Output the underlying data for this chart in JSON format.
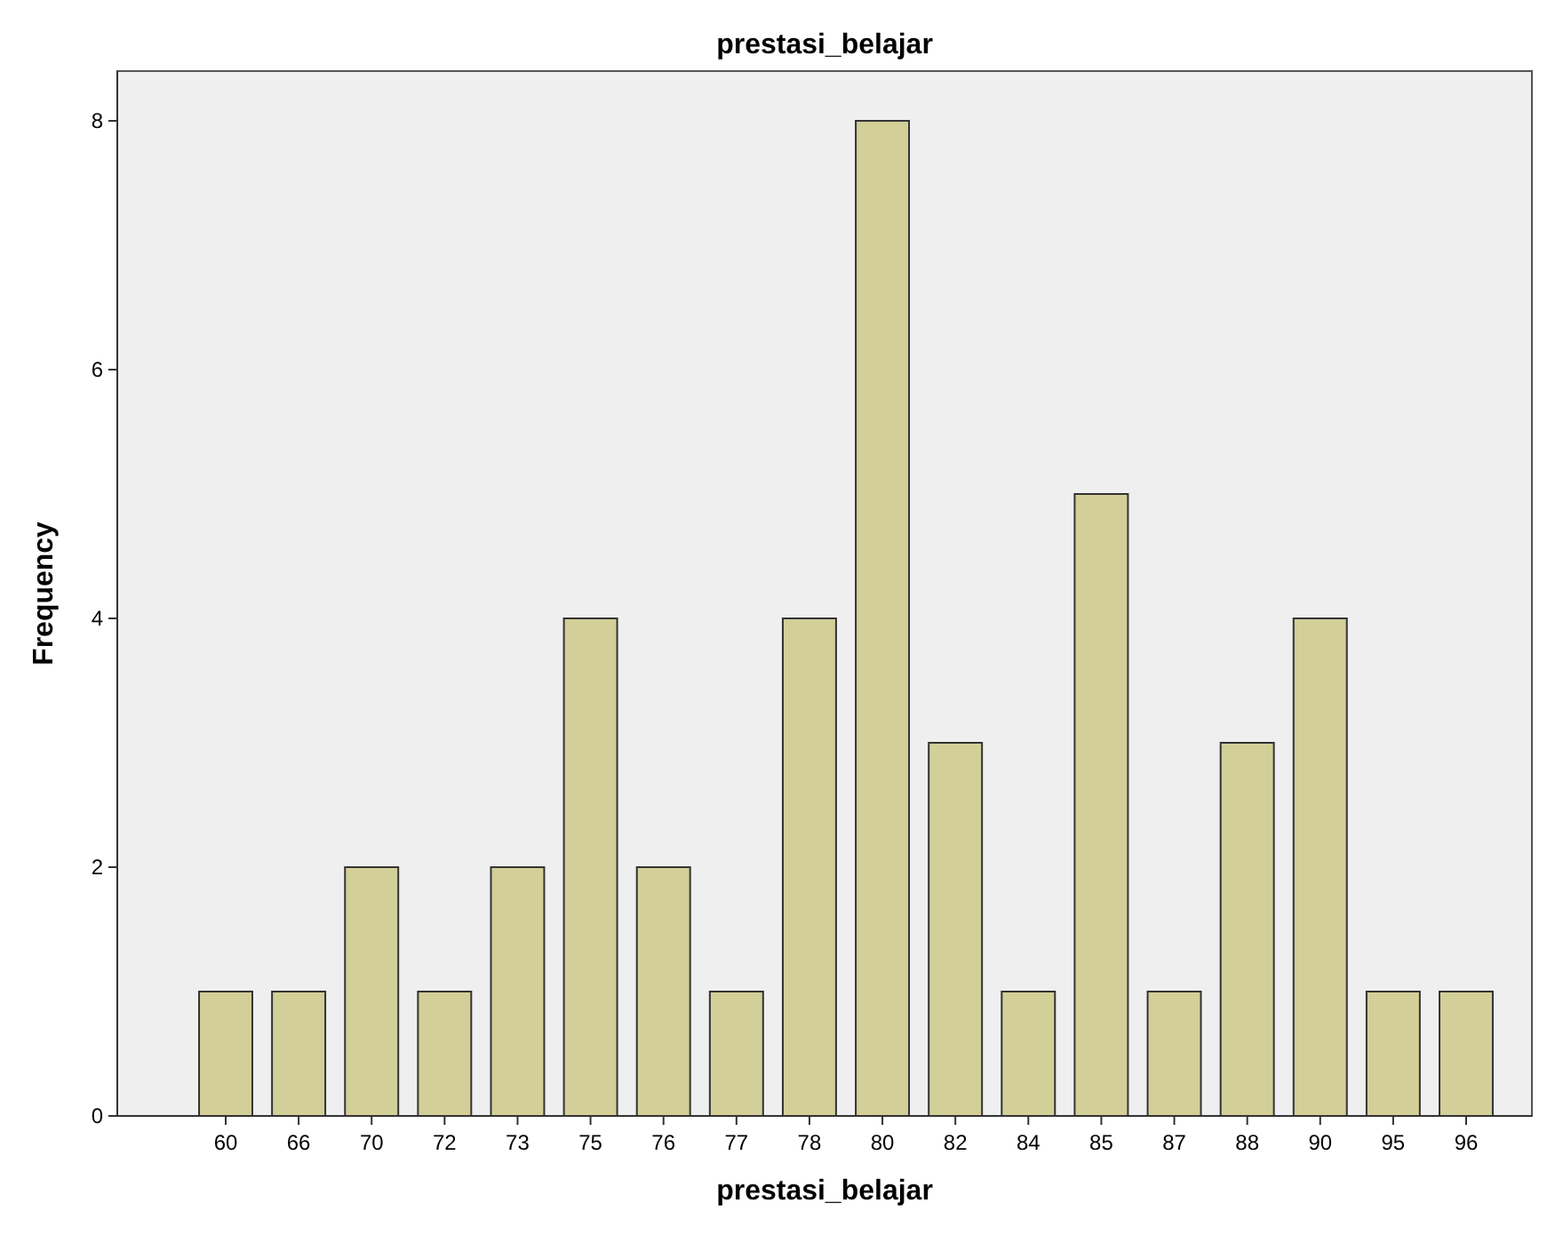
{
  "chart_data": {
    "type": "bar",
    "title": "prestasi_belajar",
    "xlabel": "prestasi_belajar",
    "ylabel": "Frequency",
    "categories": [
      "60",
      "66",
      "70",
      "72",
      "73",
      "75",
      "76",
      "77",
      "78",
      "80",
      "82",
      "84",
      "85",
      "87",
      "88",
      "90",
      "95",
      "96"
    ],
    "values": [
      1,
      1,
      2,
      1,
      2,
      4,
      2,
      1,
      4,
      8,
      3,
      1,
      5,
      1,
      3,
      4,
      1,
      1
    ],
    "color": "#d3cf98",
    "ylim": [
      0,
      8.4
    ],
    "yticks": [
      0,
      2,
      4,
      6,
      8
    ],
    "grid": false
  }
}
